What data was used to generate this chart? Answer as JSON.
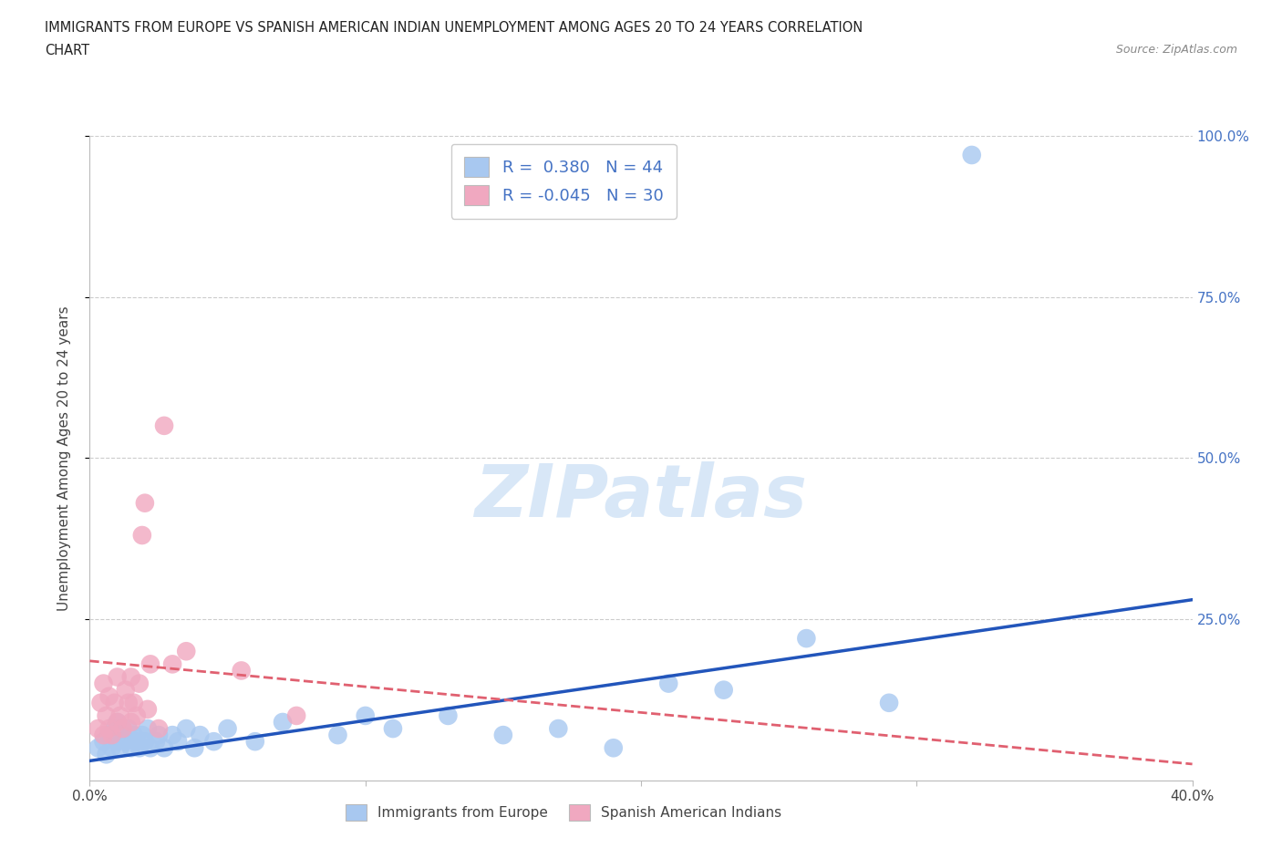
{
  "title_line1": "IMMIGRANTS FROM EUROPE VS SPANISH AMERICAN INDIAN UNEMPLOYMENT AMONG AGES 20 TO 24 YEARS CORRELATION",
  "title_line2": "CHART",
  "source": "Source: ZipAtlas.com",
  "ylabel": "Unemployment Among Ages 20 to 24 years",
  "xlim": [
    0.0,
    0.4
  ],
  "ylim": [
    0.0,
    1.0
  ],
  "xticks": [
    0.0,
    0.1,
    0.2,
    0.3,
    0.4
  ],
  "yticks": [
    0.25,
    0.5,
    0.75,
    1.0
  ],
  "ytick_labels": [
    "25.0%",
    "50.0%",
    "75.0%",
    "100.0%"
  ],
  "xtick_labels": [
    "0.0%",
    "",
    "",
    "",
    "40.0%"
  ],
  "blue_R": 0.38,
  "blue_N": 44,
  "pink_R": -0.045,
  "pink_N": 30,
  "blue_color": "#a8c8f0",
  "pink_color": "#f0a8c0",
  "blue_line_color": "#2255bb",
  "pink_line_color": "#e06070",
  "legend_label_blue": "Immigrants from Europe",
  "legend_label_pink": "Spanish American Indians",
  "blue_trend_x0": 0.0,
  "blue_trend_y0": 0.03,
  "blue_trend_x1": 0.4,
  "blue_trend_y1": 0.28,
  "pink_trend_x0": 0.0,
  "pink_trend_y0": 0.185,
  "pink_trend_x1": 0.4,
  "pink_trend_y1": 0.025,
  "blue_x": [
    0.003,
    0.005,
    0.006,
    0.007,
    0.008,
    0.009,
    0.01,
    0.01,
    0.011,
    0.012,
    0.013,
    0.014,
    0.015,
    0.016,
    0.017,
    0.018,
    0.019,
    0.02,
    0.021,
    0.022,
    0.024,
    0.025,
    0.027,
    0.03,
    0.032,
    0.035,
    0.038,
    0.04,
    0.045,
    0.05,
    0.06,
    0.07,
    0.09,
    0.1,
    0.11,
    0.13,
    0.15,
    0.17,
    0.19,
    0.21,
    0.23,
    0.26,
    0.29,
    0.32
  ],
  "blue_y": [
    0.05,
    0.06,
    0.04,
    0.07,
    0.05,
    0.08,
    0.06,
    0.09,
    0.05,
    0.07,
    0.06,
    0.08,
    0.05,
    0.07,
    0.06,
    0.05,
    0.07,
    0.06,
    0.08,
    0.05,
    0.06,
    0.07,
    0.05,
    0.07,
    0.06,
    0.08,
    0.05,
    0.07,
    0.06,
    0.08,
    0.06,
    0.09,
    0.07,
    0.1,
    0.08,
    0.1,
    0.07,
    0.08,
    0.05,
    0.15,
    0.14,
    0.22,
    0.12,
    0.97
  ],
  "pink_x": [
    0.003,
    0.004,
    0.005,
    0.005,
    0.006,
    0.007,
    0.007,
    0.008,
    0.009,
    0.01,
    0.01,
    0.011,
    0.012,
    0.013,
    0.014,
    0.015,
    0.015,
    0.016,
    0.017,
    0.018,
    0.019,
    0.02,
    0.021,
    0.022,
    0.025,
    0.027,
    0.03,
    0.035,
    0.055,
    0.075
  ],
  "pink_y": [
    0.08,
    0.12,
    0.07,
    0.15,
    0.1,
    0.13,
    0.08,
    0.07,
    0.12,
    0.09,
    0.16,
    0.1,
    0.08,
    0.14,
    0.12,
    0.09,
    0.16,
    0.12,
    0.1,
    0.15,
    0.38,
    0.43,
    0.11,
    0.18,
    0.08,
    0.55,
    0.18,
    0.2,
    0.17,
    0.1
  ]
}
